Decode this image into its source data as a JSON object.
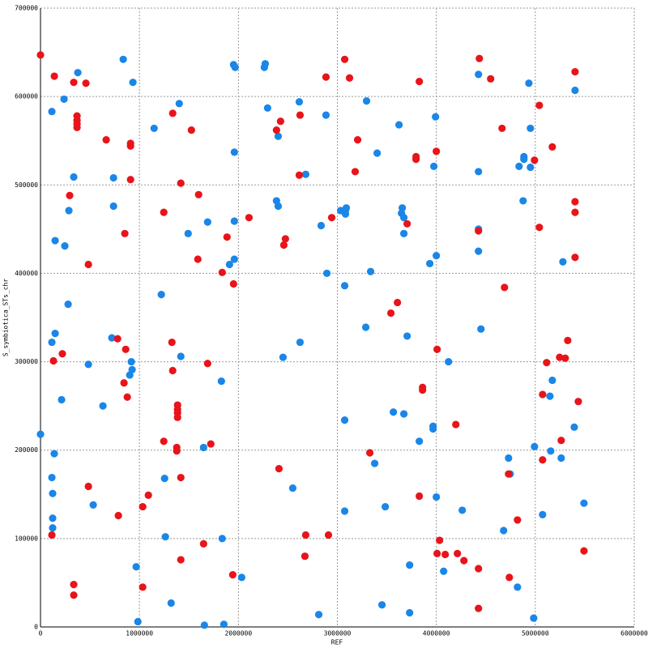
{
  "chart_data": {
    "type": "scatter",
    "xlabel": "REF",
    "ylabel": "S_symbiotica_STs_chr",
    "xlim": [
      0,
      6000000
    ],
    "ylim": [
      0,
      700000
    ],
    "xticks": [
      0,
      1000000,
      2000000,
      3000000,
      4000000,
      5000000,
      6000000
    ],
    "yticks": [
      0,
      100000,
      200000,
      300000,
      400000,
      500000,
      600000,
      700000
    ],
    "grid": true,
    "series": [
      {
        "color": "#1a86e8",
        "x": [
          0,
          115000,
          238000,
          377000,
          115000,
          148000,
          148000,
          139000,
          115000,
          123000,
          123000,
          123000,
          213000,
          246000,
          279000,
          287000,
          336000,
          484000,
          533000,
          631000,
          721000,
          738000,
          738000,
          836000,
          934000,
          918000,
          926000,
          902000,
          967000,
          984000,
          1148000,
          1221000,
          1262000,
          1320000,
          1402000,
          1418000,
          1492000,
          1689000,
          1648000,
          1254000,
          1828000,
          1836000,
          1853000,
          1656000,
          1910000,
          1959000,
          1959000,
          1959000,
          1951000,
          1967000,
          2033000,
          2271000,
          2262000,
          2295000,
          2385000,
          2402000,
          2451000,
          2549000,
          2615000,
          2623000,
          2402000,
          2680000,
          2812000,
          2836000,
          2885000,
          2894000,
          3033000,
          3082000,
          3082000,
          3090000,
          3074000,
          3074000,
          3074000,
          3287000,
          3295000,
          3336000,
          3377000,
          3402000,
          3451000,
          3484000,
          3730000,
          3730000,
          3566000,
          3623000,
          3705000,
          3656000,
          3648000,
          3672000,
          3672000,
          3672000,
          3828000,
          3934000,
          3967000,
          3967000,
          3975000,
          3992000,
          4000000,
          4000000,
          4074000,
          4123000,
          4262000,
          4426000,
          4426000,
          4426000,
          4426000,
          4451000,
          4680000,
          4730000,
          4746000,
          4820000,
          4836000,
          4935000,
          4951000,
          4877000,
          4951000,
          4885000,
          4885000,
          4992000,
          4984000,
          5074000,
          5172000,
          5148000,
          5156000,
          5262000,
          5279000,
          5402000,
          5394000,
          5492000
        ],
        "values": [
          218000,
          583000,
          597000,
          627000,
          322000,
          332000,
          437000,
          196000,
          169000,
          151000,
          123000,
          112000,
          257000,
          431000,
          365000,
          471000,
          509000,
          297000,
          138000,
          250000,
          327000,
          476000,
          508000,
          642000,
          616000,
          300000,
          291000,
          285000,
          68000,
          6000,
          564000,
          376000,
          102000,
          27000,
          592000,
          306000,
          445000,
          458000,
          203000,
          168000,
          278000,
          100000,
          3000,
          2000,
          410000,
          416000,
          459000,
          537000,
          636000,
          633000,
          56000,
          637000,
          633000,
          587000,
          482000,
          476000,
          305000,
          157000,
          594000,
          322000,
          555000,
          512000,
          14000,
          454000,
          579000,
          400000,
          471000,
          471000,
          467000,
          474000,
          386000,
          234000,
          131000,
          339000,
          595000,
          402000,
          185000,
          536000,
          25000,
          136000,
          16000,
          70000,
          243000,
          568000,
          329000,
          474000,
          468000,
          463000,
          445000,
          241000,
          210000,
          411000,
          227000,
          224000,
          521000,
          577000,
          420000,
          147000,
          63000,
          300000,
          132000,
          625000,
          515000,
          450000,
          425000,
          337000,
          109000,
          191000,
          173000,
          45000,
          521000,
          615000,
          564000,
          482000,
          520000,
          532000,
          529000,
          204000,
          10000,
          127000,
          279000,
          261000,
          199000,
          191000,
          413000,
          607000,
          226000,
          140000
        ]
      },
      {
        "color": "#e8141a",
        "x": [
          0,
          140000,
          336000,
          459000,
          369000,
          369000,
          369000,
          369000,
          664000,
          910000,
          910000,
          910000,
          295000,
          484000,
          852000,
          779000,
          861000,
          131000,
          221000,
          844000,
          877000,
          484000,
          787000,
          1033000,
          1090000,
          115000,
          336000,
          336000,
          1246000,
          1336000,
          1525000,
          1418000,
          1598000,
          1590000,
          1328000,
          1336000,
          1385000,
          1385000,
          1385000,
          1385000,
          1377000,
          1377000,
          1418000,
          1246000,
          1721000,
          1689000,
          1418000,
          1648000,
          1033000,
          1943000,
          1885000,
          1836000,
          1951000,
          2107000,
          2385000,
          2426000,
          2475000,
          2459000,
          2623000,
          2615000,
          2410000,
          2680000,
          2672000,
          2910000,
          2885000,
          3074000,
          3123000,
          3205000,
          3180000,
          2943000,
          3328000,
          3541000,
          3607000,
          3705000,
          3795000,
          3795000,
          3828000,
          3828000,
          3861000,
          3861000,
          4000000,
          4008000,
          4033000,
          4090000,
          4008000,
          4197000,
          4213000,
          4279000,
          4426000,
          4435000,
          4426000,
          4426000,
          4549000,
          4664000,
          4689000,
          4730000,
          4738000,
          4820000,
          5041000,
          5041000,
          4992000,
          5074000,
          5074000,
          5115000,
          5172000,
          5246000,
          5303000,
          5328000,
          5262000,
          5402000,
          5402000,
          5402000,
          5402000,
          5435000,
          5492000
        ],
        "values": [
          647000,
          623000,
          616000,
          615000,
          578000,
          573000,
          569000,
          565000,
          551000,
          547000,
          544000,
          506000,
          488000,
          410000,
          445000,
          326000,
          314000,
          301000,
          309000,
          276000,
          260000,
          159000,
          126000,
          136000,
          149000,
          104000,
          48000,
          36000,
          469000,
          581000,
          562000,
          502000,
          489000,
          416000,
          322000,
          290000,
          251000,
          246000,
          242000,
          237000,
          203000,
          199000,
          169000,
          210000,
          207000,
          298000,
          76000,
          94000,
          45000,
          59000,
          441000,
          401000,
          388000,
          463000,
          562000,
          572000,
          439000,
          432000,
          579000,
          511000,
          179000,
          104000,
          80000,
          104000,
          622000,
          642000,
          621000,
          551000,
          515000,
          463000,
          197000,
          355000,
          367000,
          456000,
          532000,
          529000,
          617000,
          148000,
          271000,
          268000,
          538000,
          314000,
          98000,
          82000,
          83000,
          229000,
          83000,
          75000,
          448000,
          643000,
          66000,
          21000,
          620000,
          564000,
          384000,
          173000,
          56000,
          121000,
          590000,
          452000,
          528000,
          263000,
          189000,
          299000,
          543000,
          305000,
          304000,
          324000,
          211000,
          628000,
          481000,
          469000,
          418000,
          255000,
          86000
        ]
      }
    ]
  }
}
